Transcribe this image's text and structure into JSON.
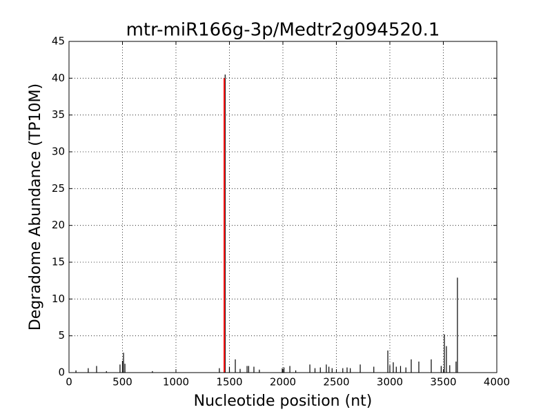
{
  "chart_data": {
    "type": "vlines",
    "title": "mtr-miR166g-3p/Medtr2g094520.1",
    "x_label": "Nucleotide position (nt)",
    "y_label": "Degradome Abundance (TP10M)",
    "xlim": [
      0,
      4000
    ],
    "ylim": [
      0,
      45
    ],
    "xticks": [
      0,
      500,
      1000,
      1500,
      2000,
      2500,
      3000,
      3500,
      4000
    ],
    "yticks": [
      0,
      5,
      10,
      15,
      20,
      25,
      30,
      35,
      40,
      45
    ],
    "grid": true,
    "series": [
      {
        "color": "#000000",
        "x": [
          65,
          180,
          258,
          350,
          477,
          500,
          510,
          523,
          780,
          1406,
          1460,
          1500,
          1555,
          1600,
          1665,
          1680,
          1729,
          1780,
          1994,
          2010,
          2065,
          2120,
          2252,
          2300,
          2350,
          2406,
          2430,
          2460,
          2560,
          2600,
          2630,
          2723,
          2850,
          2981,
          3000,
          3032,
          3060,
          3100,
          3150,
          3200,
          3271,
          3387,
          3480,
          3510,
          3529,
          3560,
          3619,
          3632
        ],
        "values": [
          0.3,
          0.6,
          0.9,
          0.2,
          1.1,
          1.6,
          2.7,
          1.2,
          0.2,
          0.6,
          40.5,
          0.8,
          1.8,
          0.5,
          0.9,
          0.9,
          0.8,
          0.4,
          0.6,
          0.7,
          0.9,
          0.3,
          1.1,
          0.6,
          0.7,
          1.1,
          0.8,
          0.6,
          0.6,
          0.7,
          0.6,
          1.1,
          0.8,
          3.0,
          1.0,
          1.4,
          0.8,
          0.9,
          0.7,
          1.8,
          1.5,
          1.8,
          0.9,
          5.2,
          3.6,
          1.0,
          1.5,
          12.9
        ]
      },
      {
        "color": "#ff0000",
        "x": [
          1452
        ],
        "values": [
          40.0
        ]
      }
    ]
  }
}
